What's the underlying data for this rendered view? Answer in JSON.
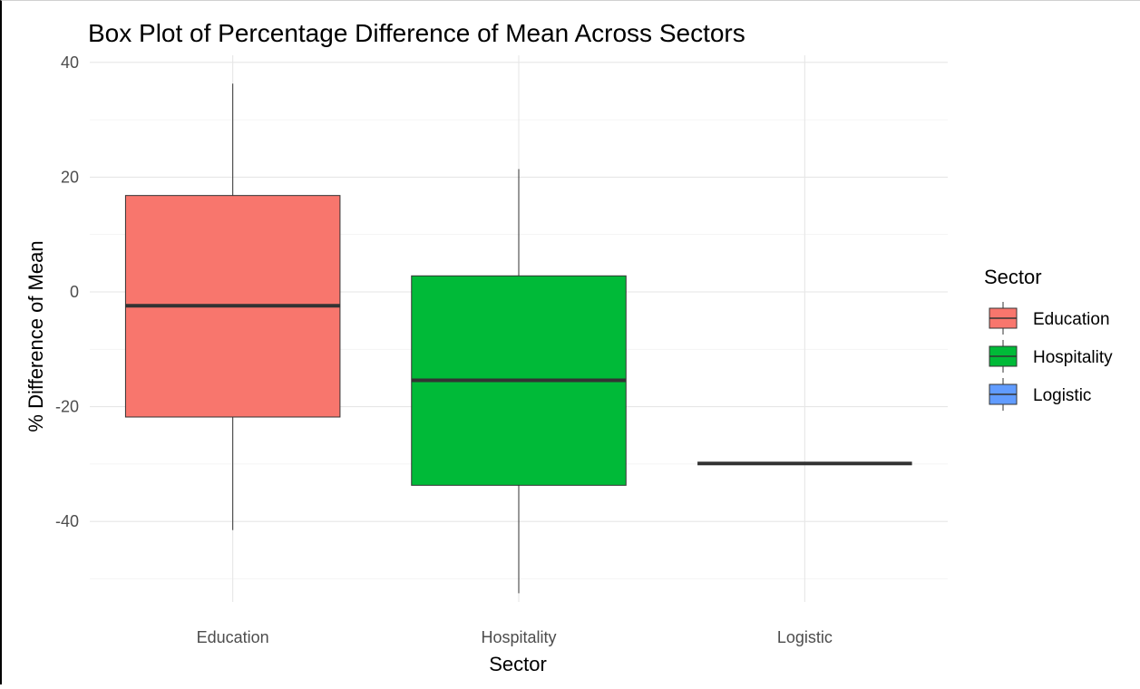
{
  "chart_data": {
    "type": "box",
    "title": "Box Plot of Percentage Difference of Mean Across Sectors",
    "xlabel": "Sector",
    "ylabel": "% Difference of Mean",
    "ylim": [
      -52.5,
      40
    ],
    "yticks": [
      -40,
      -20,
      0,
      20,
      40
    ],
    "ytick_labels": [
      "-40",
      "-20",
      "0",
      "20",
      "40"
    ],
    "grid": true,
    "categories": [
      "Education",
      "Hospitality",
      "Logistic"
    ],
    "boxes": [
      {
        "category": "Education",
        "min": -41.5,
        "q1": -21.8,
        "median": -2.4,
        "q3": 16.8,
        "max": 36.3,
        "color": "#F8766D"
      },
      {
        "category": "Hospitality",
        "min": -52.5,
        "q1": -33.7,
        "median": -15.4,
        "q3": 2.8,
        "max": 21.4,
        "color": "#00BA38"
      },
      {
        "category": "Logistic",
        "min": -29.9,
        "q1": -29.9,
        "median": -29.9,
        "q3": -29.9,
        "max": -29.9,
        "color": "#619CFF"
      }
    ],
    "legend": {
      "title": "Sector",
      "placement": "right",
      "entries": [
        {
          "label": "Education",
          "color": "#F8766D"
        },
        {
          "label": "Hospitality",
          "color": "#00BA38"
        },
        {
          "label": "Logistic",
          "color": "#619CFF"
        }
      ]
    }
  }
}
